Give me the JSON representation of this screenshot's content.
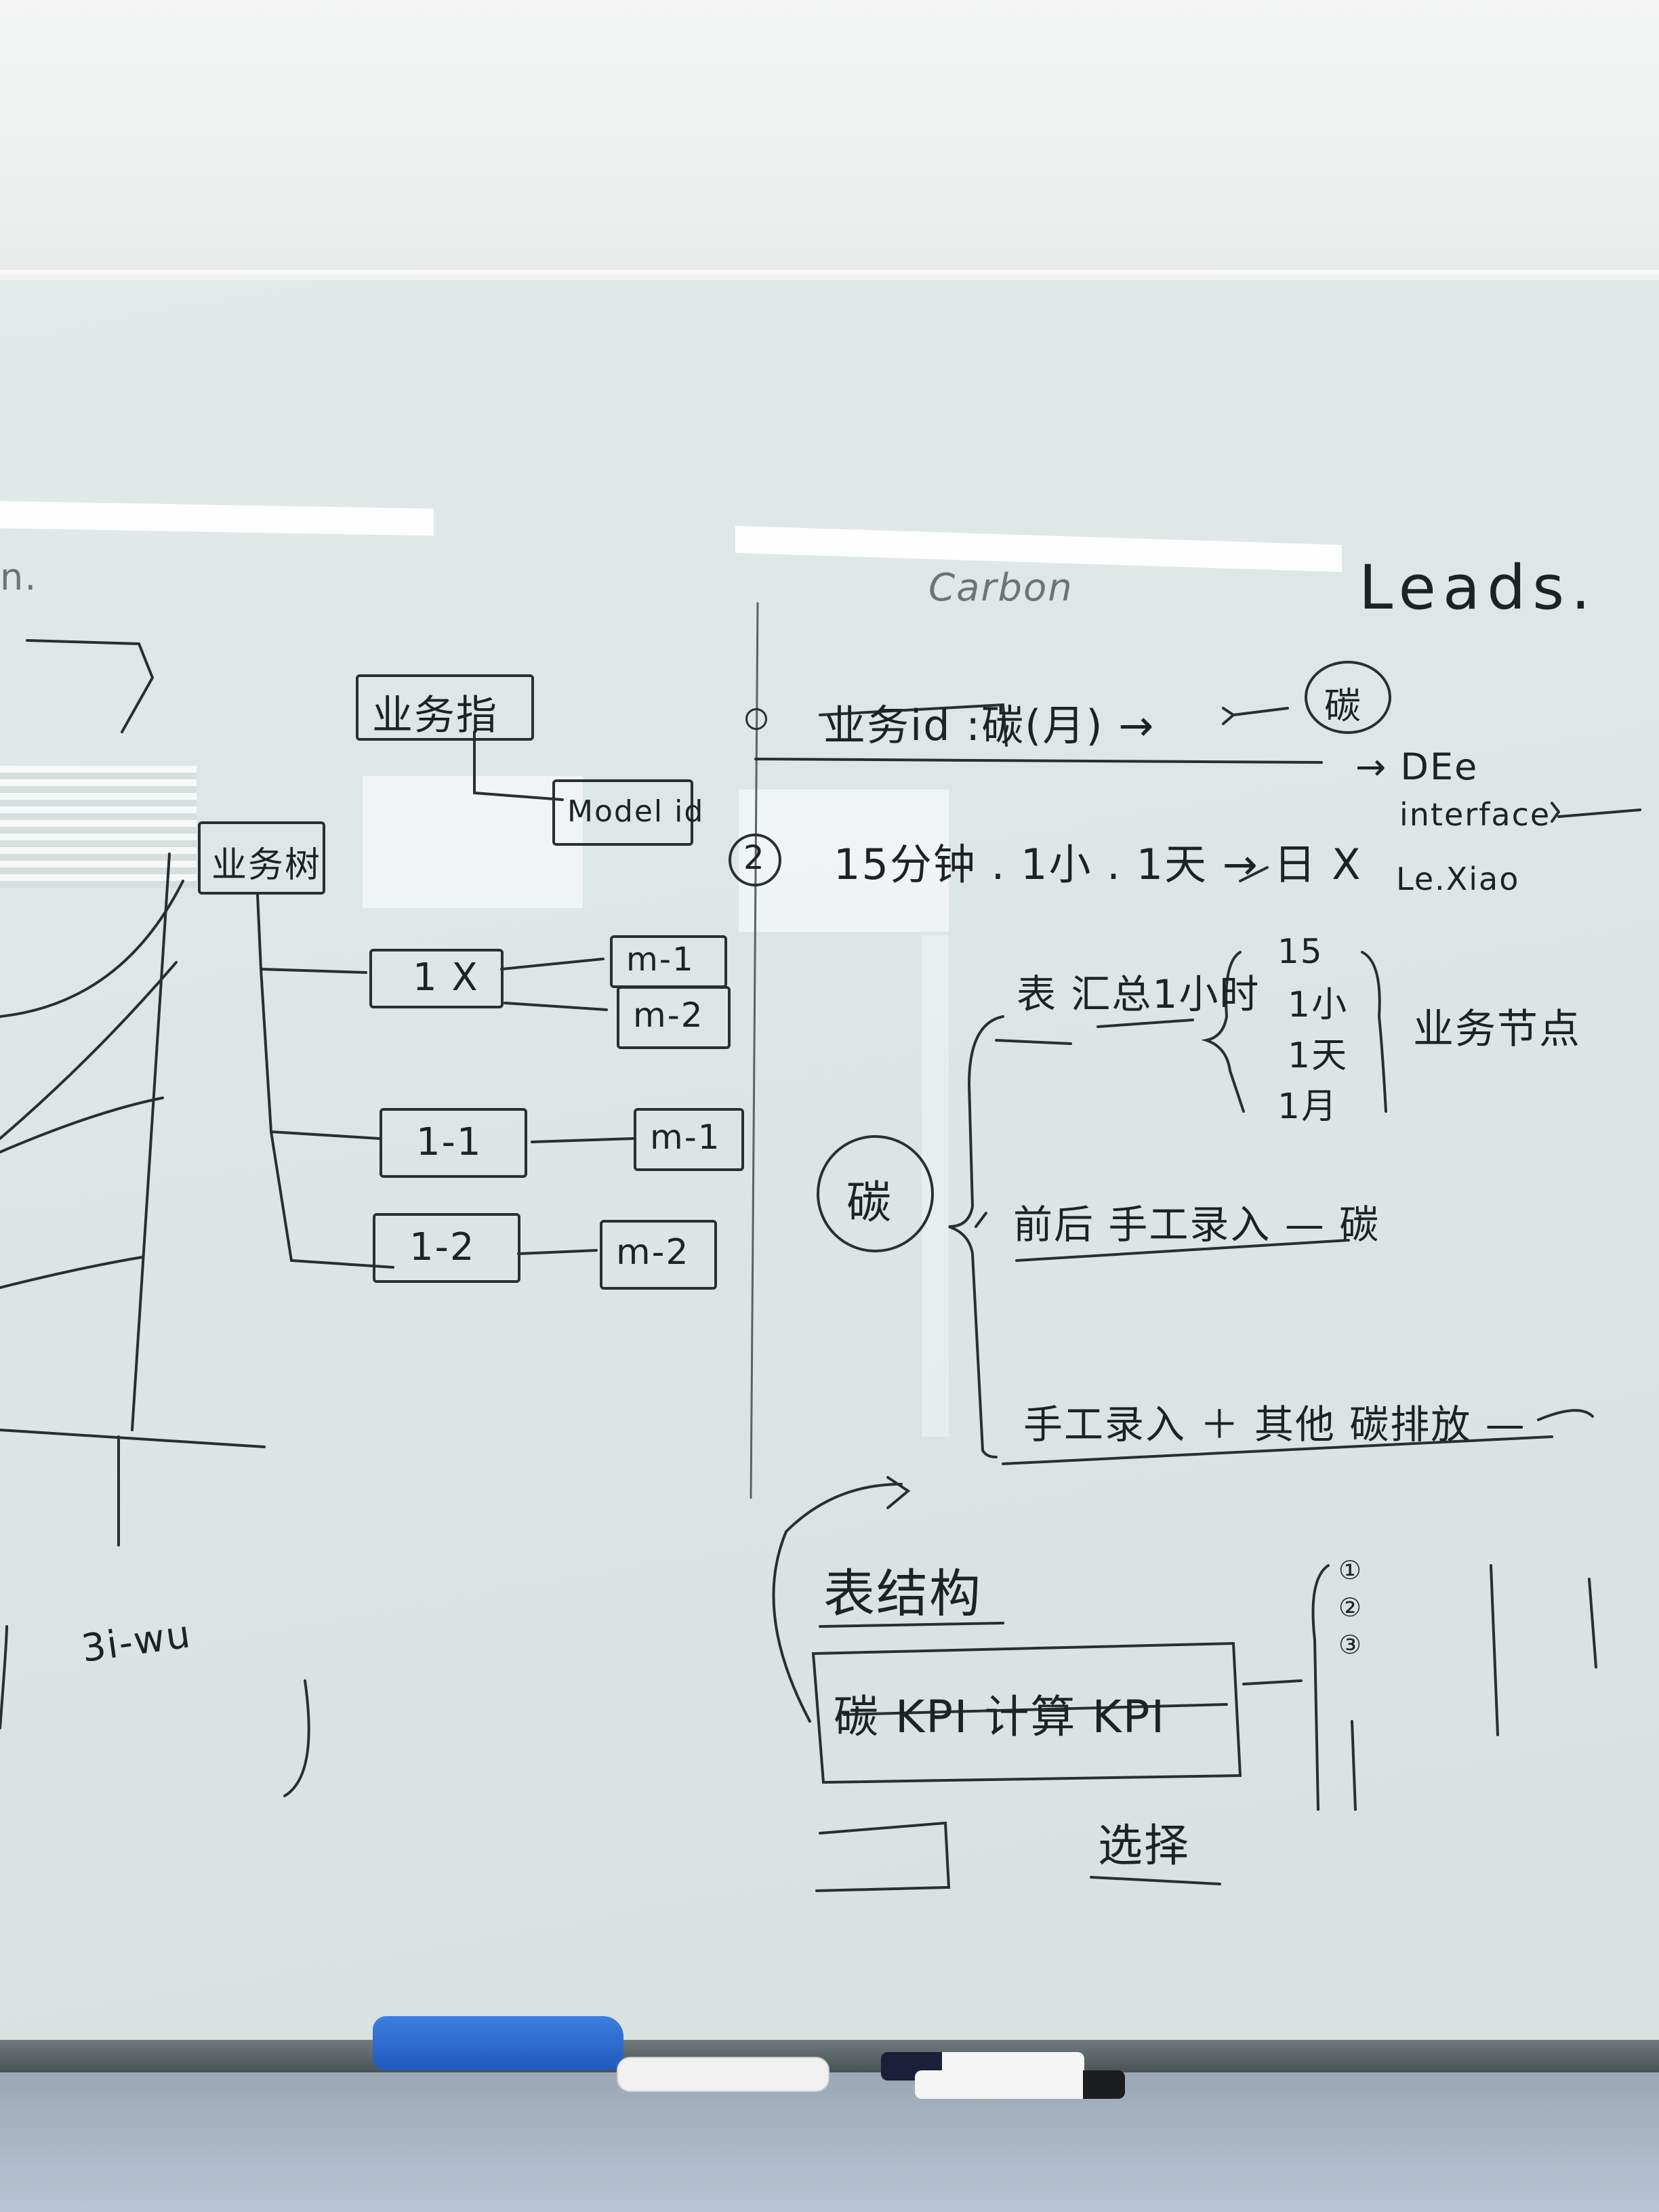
{
  "wall": {},
  "left_area": {
    "fragment_1": "n.",
    "fragment_2": "3i-wu",
    "boxes": {
      "business_attr": "业务指",
      "model_id": "Model id",
      "business_main": "业务树",
      "one_x": "1 X",
      "m1_top": "m-1",
      "m2_top": "m-2",
      "one_one": "1-1",
      "m1_mid": "m-1",
      "one_two": "1-2",
      "m2_bot": "m-2"
    }
  },
  "right_area": {
    "carbon_title": "Carbon",
    "leads_title": "Leads.",
    "row1_text": "业务id  :碳(月) →",
    "row1_circle": "碳",
    "row2_text": "15分钟 . 1小 . 1天 → 日 X",
    "row2_marker": "2",
    "list_right": [
      "→ DEe",
      "interface",
      "Le.Xiao"
    ],
    "brace_items": [
      "15",
      "1小",
      "1天",
      "1月"
    ],
    "brace_label": "业务节点",
    "sum_text": "表 汇总1小时",
    "center_circle": "碳",
    "branch_2": "前后 手工录入 — 碳",
    "branch_3": "手工录入 ＋ 其他 碳排放 —",
    "table_structure": "表结构",
    "kpi_box": "碳 KPI  计算 KPI",
    "choice": "选择",
    "list_markers": [
      "①",
      "②",
      "③"
    ]
  },
  "colors": {
    "ink": "#2a2e30",
    "board": "#dde5e5",
    "eraser": "#2563c9"
  }
}
